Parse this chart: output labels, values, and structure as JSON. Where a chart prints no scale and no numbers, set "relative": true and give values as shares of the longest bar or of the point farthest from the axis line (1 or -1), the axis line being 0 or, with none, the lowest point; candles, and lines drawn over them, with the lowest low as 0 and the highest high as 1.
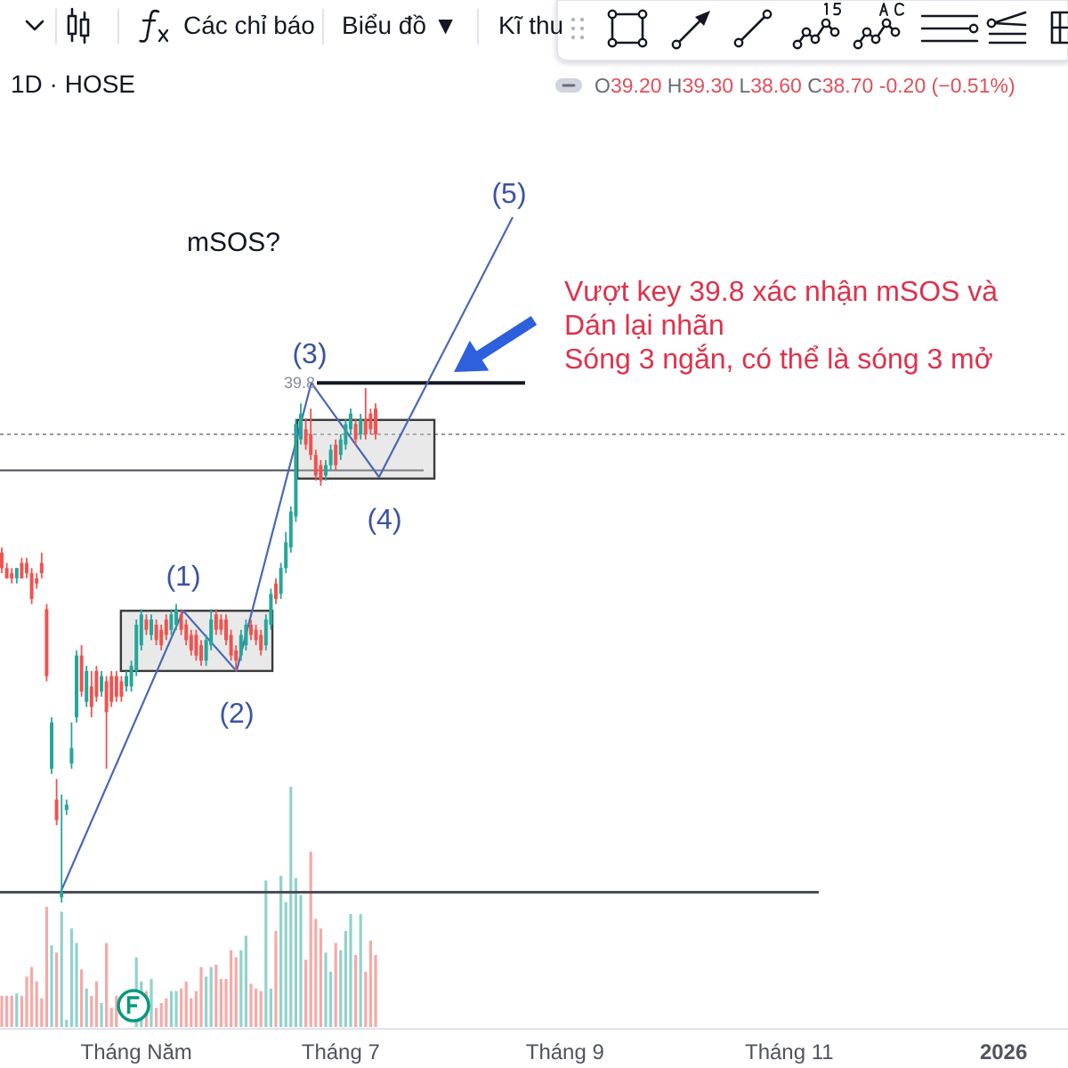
{
  "chart_data": [
    {
      "type": "candlestick",
      "title": "1D · HOSE",
      "relative": true,
      "categories": [
        null,
        null,
        null,
        null,
        null,
        null,
        null,
        null,
        null,
        null,
        null,
        null,
        null,
        null,
        null,
        null,
        null,
        null,
        null,
        null,
        null,
        null,
        null,
        null,
        null,
        null,
        null,
        null,
        null,
        null,
        null,
        null,
        null,
        null,
        null,
        null,
        null,
        null,
        null,
        null,
        null,
        null,
        null,
        null,
        null,
        null,
        null,
        null,
        null,
        null,
        null,
        null,
        null,
        null,
        null,
        null,
        null,
        null,
        null,
        null,
        null,
        null,
        null,
        null,
        null,
        null,
        null,
        null,
        null,
        null,
        null,
        null,
        null,
        null,
        null,
        null,
        null,
        null,
        null,
        null,
        null,
        null,
        null,
        null,
        null,
        null,
        null,
        null,
        null,
        null,
        null,
        null,
        null,
        null,
        null,
        null,
        null,
        null,
        null,
        null,
        null,
        null,
        null,
        null,
        null,
        null,
        null,
        null,
        null,
        null,
        null,
        null,
        null,
        null,
        null,
        null,
        null,
        null,
        null,
        null,
        null,
        null,
        null,
        null,
        null,
        null,
        null,
        null,
        null,
        null,
        null,
        null,
        null,
        null,
        null,
        null,
        null,
        null,
        null,
        null,
        null,
        null,
        null,
        null,
        null,
        null,
        null,
        null,
        null,
        null,
        null,
        null,
        null,
        null,
        null,
        null,
        null,
        null,
        null,
        null,
        null,
        null,
        null,
        null,
        null,
        null,
        null,
        null,
        null,
        null,
        null,
        null,
        null,
        null,
        null,
        null,
        null,
        null,
        null,
        null,
        null,
        null,
        null,
        null,
        null,
        null,
        null,
        null,
        null,
        null,
        null,
        null,
        null,
        null,
        null,
        null,
        null,
        null,
        null,
        null,
        null,
        null,
        null,
        null,
        null,
        null,
        null,
        null,
        null,
        null,
        null,
        null,
        null,
        null,
        null
      ],
      "ohlc": [
        [
          0.68,
          0.69,
          0.64,
          0.65
        ],
        [
          0.65,
          0.66,
          0.63,
          0.63
        ],
        [
          0.64,
          0.65,
          0.62,
          0.63
        ],
        [
          0.63,
          0.65,
          0.62,
          0.65
        ],
        [
          0.66,
          0.67,
          0.63,
          0.63
        ],
        [
          0.66,
          0.67,
          0.63,
          0.64
        ],
        [
          0.64,
          0.65,
          0.58,
          0.59
        ],
        [
          0.63,
          0.64,
          0.61,
          0.62
        ],
        [
          0.66,
          0.68,
          0.63,
          0.64
        ],
        [
          0.57,
          0.58,
          0.43,
          0.44
        ],
        [
          0.26,
          0.36,
          0.25,
          0.35
        ],
        [
          0.2,
          0.24,
          0.15,
          0.16
        ],
        [
          0.01,
          0.21,
          0,
          0.02
        ],
        [
          0.18,
          0.2,
          0.17,
          0.19
        ],
        [
          0.27,
          0.35,
          0.26,
          0.3
        ],
        [
          0.36,
          0.49,
          0.35,
          0.48
        ],
        [
          0.48,
          0.5,
          0.4,
          0.41
        ],
        [
          0.39,
          0.46,
          0.38,
          0.45
        ],
        [
          0.42,
          0.45,
          0.36,
          0.38
        ],
        [
          0.45,
          0.46,
          0.39,
          0.4
        ],
        [
          0.41,
          0.45,
          0.4,
          0.44
        ],
        [
          0.43,
          0.44,
          0.26,
          0.37
        ],
        [
          0.44,
          0.45,
          0.38,
          0.39
        ],
        [
          0.44,
          0.45,
          0.39,
          0.4
        ],
        [
          0.43,
          0.44,
          0.39,
          0.4
        ],
        [
          0.42,
          0.45,
          0.41,
          0.44
        ],
        [
          0.42,
          0.47,
          0.41,
          0.46
        ],
        [
          0.45,
          0.55,
          0.44,
          0.54
        ],
        [
          0.5,
          0.57,
          0.49,
          0.56
        ],
        [
          0.55,
          0.56,
          0.52,
          0.53
        ],
        [
          0.52,
          0.56,
          0.51,
          0.55
        ],
        [
          0.54,
          0.55,
          0.5,
          0.51
        ],
        [
          0.53,
          0.54,
          0.49,
          0.5
        ],
        [
          0.55,
          0.56,
          0.51,
          0.52
        ],
        [
          0.53,
          0.57,
          0.52,
          0.56
        ],
        [
          0.54,
          0.58,
          0.53,
          0.57
        ],
        [
          0.56,
          0.57,
          0.52,
          0.53
        ],
        [
          0.54,
          0.55,
          0.5,
          0.51
        ],
        [
          0.52,
          0.53,
          0.48,
          0.49
        ],
        [
          0.52,
          0.53,
          0.47,
          0.48
        ],
        [
          0.5,
          0.51,
          0.46,
          0.47
        ],
        [
          0.47,
          0.52,
          0.46,
          0.51
        ],
        [
          0.5,
          0.57,
          0.49,
          0.55
        ],
        [
          0.56,
          0.57,
          0.52,
          0.53
        ],
        [
          0.55,
          0.56,
          0.52,
          0.53
        ],
        [
          0.55,
          0.56,
          0.5,
          0.51
        ],
        [
          0.52,
          0.53,
          0.47,
          0.48
        ],
        [
          0.49,
          0.5,
          0.45,
          0.47
        ],
        [
          0.48,
          0.53,
          0.47,
          0.52
        ],
        [
          0.5,
          0.55,
          0.49,
          0.54
        ],
        [
          0.54,
          0.55,
          0.51,
          0.52
        ],
        [
          0.53,
          0.54,
          0.5,
          0.51
        ],
        [
          0.52,
          0.53,
          0.48,
          0.49
        ],
        [
          0.5,
          0.56,
          0.49,
          0.55
        ],
        [
          0.54,
          0.61,
          0.53,
          0.6
        ],
        [
          0.62,
          0.63,
          0.58,
          0.59
        ],
        [
          0.6,
          0.66,
          0.59,
          0.65
        ],
        [
          0.65,
          0.72,
          0.64,
          0.7
        ],
        [
          0.69,
          0.77,
          0.68,
          0.76
        ],
        [
          0.75,
          0.94,
          0.74,
          0.93
        ],
        [
          0.9,
          0.97,
          0.89,
          0.95
        ],
        [
          0.92,
          0.94,
          0.88,
          0.89
        ],
        [
          0.91,
          0.96,
          0.86,
          0.87
        ],
        [
          0.87,
          0.88,
          0.82,
          0.83
        ],
        [
          0.85,
          0.86,
          0.81,
          0.82
        ],
        [
          0.83,
          0.86,
          0.82,
          0.85
        ],
        [
          0.85,
          0.89,
          0.84,
          0.88
        ],
        [
          0.89,
          0.9,
          0.84,
          0.85
        ],
        [
          0.87,
          0.91,
          0.86,
          0.9
        ],
        [
          0.89,
          0.94,
          0.88,
          0.93
        ],
        [
          0.92,
          0.96,
          0.91,
          0.95
        ],
        [
          0.93,
          0.94,
          0.89,
          0.9
        ],
        [
          0.91,
          0.95,
          0.9,
          0.94
        ],
        [
          0.94,
          1,
          0.9,
          0.91
        ],
        [
          0.95,
          0.96,
          0.91,
          0.92
        ],
        [
          0.96,
          0.97,
          0.9,
          0.91
        ],
        null,
        null,
        null,
        null,
        null,
        null,
        null,
        null,
        null,
        null,
        null,
        null,
        null,
        null,
        null,
        null,
        null,
        null,
        null,
        null,
        null,
        null,
        null,
        null,
        null,
        null,
        null,
        null,
        null,
        null,
        null,
        null,
        null,
        null,
        null,
        null,
        null,
        null,
        null,
        null,
        null,
        null,
        null,
        null,
        null,
        null,
        null,
        null,
        null,
        null,
        null,
        null,
        null,
        null,
        null,
        null,
        null,
        null,
        null,
        null,
        null,
        null,
        null,
        null,
        null,
        null,
        null,
        null,
        null,
        null,
        null,
        null,
        null,
        null,
        null,
        null,
        null,
        null,
        null,
        null,
        null,
        null,
        null,
        null,
        null,
        null,
        null,
        null,
        null,
        null,
        null,
        null,
        null,
        null,
        null,
        null,
        null,
        null,
        null,
        null,
        null,
        null,
        null,
        null,
        null,
        null,
        null,
        null,
        null,
        null,
        null,
        null,
        null,
        null,
        null,
        null,
        null,
        null,
        null,
        null,
        null,
        null,
        null,
        null,
        null,
        null,
        null,
        null,
        null,
        null,
        null,
        null,
        null,
        null,
        null,
        null,
        null,
        null,
        null
      ],
      "colors": [
        "#ef5350",
        "#ef5350",
        "#ef5350",
        "#26a69a",
        "#ef5350",
        "#ef5350",
        "#ef5350",
        "#ef5350",
        "#ef5350",
        "#ef5350",
        "#26a69a",
        "#ef5350",
        "#26a69a",
        "#26a69a",
        "#26a69a",
        "#26a69a",
        "#ef5350",
        "#26a69a",
        "#ef5350",
        "#ef5350",
        "#26a69a",
        "#ef5350",
        "#ef5350",
        "#ef5350",
        "#ef5350",
        "#26a69a",
        "#26a69a",
        "#26a69a",
        "#26a69a",
        "#ef5350",
        "#26a69a",
        "#ef5350",
        "#ef5350",
        "#ef5350",
        "#26a69a",
        "#26a69a",
        "#ef5350",
        "#ef5350",
        "#ef5350",
        "#ef5350",
        "#ef5350",
        "#26a69a",
        "#26a69a",
        "#ef5350",
        "#ef5350",
        "#ef5350",
        "#ef5350",
        "#ef5350",
        "#26a69a",
        "#26a69a",
        "#ef5350",
        "#ef5350",
        "#ef5350",
        "#26a69a",
        "#26a69a",
        "#ef5350",
        "#26a69a",
        "#26a69a",
        "#26a69a",
        "#26a69a",
        "#26a69a",
        "#ef5350",
        "#ef5350",
        "#ef5350",
        "#ef5350",
        "#26a69a",
        "#26a69a",
        "#ef5350",
        "#26a69a",
        "#26a69a",
        "#26a69a",
        "#ef5350",
        "#26a69a",
        "#ef5350",
        "#ef5350",
        "#ef5350",
        null,
        null,
        null,
        null,
        null,
        null,
        null,
        null,
        null,
        null,
        null,
        null,
        null,
        null,
        null,
        null,
        null,
        null,
        null,
        null,
        null,
        null,
        null,
        null,
        null,
        null,
        null,
        null,
        null,
        null,
        null,
        null,
        null,
        null,
        null,
        null,
        null,
        null,
        null,
        null,
        null,
        null,
        null,
        null,
        null,
        null,
        null,
        null,
        null,
        null,
        null,
        null,
        null,
        null,
        null,
        null,
        null,
        null,
        null,
        null,
        null,
        null,
        null,
        null,
        null,
        null,
        null,
        null,
        null,
        null,
        null,
        null,
        null,
        null,
        null,
        null,
        null,
        null,
        null,
        null,
        null,
        null,
        null,
        null,
        null,
        null,
        null,
        null,
        null,
        null,
        null,
        null,
        null,
        null,
        null,
        null,
        null,
        null,
        null,
        null,
        null,
        null,
        null,
        null,
        null,
        null,
        null,
        null,
        null,
        null,
        null,
        null,
        null,
        null,
        null,
        null,
        null,
        null,
        null,
        null,
        null,
        null,
        null,
        null,
        null,
        null,
        null,
        null,
        null,
        null,
        null,
        null,
        null,
        null,
        null,
        null,
        null,
        null,
        null
      ],
      "ref_lines": [
        {
          "axis": "y",
          "value": 0.02,
          "color": "#4a4e59"
        },
        {
          "axis": "y",
          "value": 0.84,
          "color": "#4a4e59"
        },
        {
          "axis": "y",
          "value": 1.01,
          "color": "#131722"
        },
        {
          "axis": "y",
          "value": 0.91,
          "color": "#9598a1",
          "line_style": "dotted"
        }
      ],
      "annotations": [
        "(1)",
        "(2)",
        "(3)",
        "(4)",
        "(5)",
        "mSOS?",
        "39.8",
        "Vượt key 39.8 xác nhận mSOS và",
        "Dán lại nhãn",
        "Sóng 3 ngắn, có thể là sóng 3 mở",
        "O39.20 H39.30 L38.60 C38.70 -0.20 (−0.51%)",
        "Các chỉ báo",
        "Biểu đồ ▼",
        "Kĩ thu"
      ]
    },
    {
      "type": "bar",
      "relative": true,
      "categories": [
        null,
        null,
        null,
        null,
        null,
        null,
        null,
        null,
        null,
        null,
        null,
        null,
        null,
        null,
        null,
        null,
        null,
        null,
        null,
        null,
        null,
        null,
        null,
        null,
        null,
        null,
        null,
        "Tháng Năm",
        null,
        null,
        null,
        null,
        null,
        null,
        null,
        null,
        null,
        null,
        null,
        null,
        null,
        null,
        null,
        null,
        null,
        null,
        null,
        null,
        null,
        null,
        null,
        null,
        null,
        null,
        null,
        null,
        null,
        null,
        null,
        null,
        null,
        null,
        null,
        null,
        null,
        null,
        null,
        null,
        "Tháng 7",
        null,
        null,
        null,
        null,
        null,
        null,
        null,
        null,
        null,
        null,
        null,
        null,
        null,
        null,
        null,
        null,
        null,
        null,
        null,
        null,
        null,
        null,
        null,
        null,
        null,
        null,
        null,
        null,
        null,
        null,
        null,
        null,
        null,
        null,
        null,
        null,
        null,
        null,
        null,
        null,
        null,
        null,
        null,
        null,
        "Tháng 9",
        null,
        null,
        null,
        null,
        null,
        null,
        null,
        null,
        null,
        null,
        null,
        null,
        null,
        null,
        null,
        null,
        null,
        null,
        null,
        null,
        null,
        null,
        null,
        null,
        null,
        null,
        null,
        null,
        null,
        null,
        null,
        null,
        null,
        null,
        null,
        null,
        null,
        null,
        null,
        null,
        null,
        null,
        null,
        null,
        "Tháng 11",
        null,
        null,
        null,
        null,
        null,
        null,
        null,
        null,
        null,
        null,
        null,
        null,
        null,
        null,
        null,
        null,
        null,
        null,
        null,
        null,
        null,
        null,
        null,
        null,
        null,
        null,
        null,
        null,
        null,
        null,
        null,
        null,
        null,
        null,
        null,
        null,
        null,
        null,
        null,
        null,
        null,
        null,
        "2026",
        null,
        null,
        null,
        null,
        null,
        null,
        null,
        null,
        null,
        null,
        null,
        null,
        null
      ],
      "values": [
        0.13,
        0.13,
        0.13,
        0.14,
        0.13,
        0.21,
        0.25,
        0.19,
        0.12,
        0.5,
        0.34,
        0.31,
        0.48,
        0.03,
        0.41,
        0.35,
        0.24,
        0.16,
        0.13,
        0.19,
        0.1,
        0.35,
        0.08,
        0.13,
        null,
        null,
        null,
        0.29,
        0.19,
        0.15,
        0.2,
        0.08,
        0.1,
        0.12,
        0.15,
        0.15,
        0.16,
        0.19,
        0.12,
        0.15,
        0.25,
        0.21,
        0.25,
        0.26,
        0.2,
        0.2,
        0.32,
        0.29,
        0.32,
        0.38,
        0.18,
        0.16,
        0.15,
        0.61,
        0.16,
        0.4,
        0.63,
        0.52,
        1,
        0.62,
        0.55,
        0.28,
        0.73,
        0.45,
        0.41,
        0.31,
        0.23,
        0.35,
        0.32,
        0.4,
        0.47,
        0.3,
        0.47,
        0.23,
        0.36,
        0.3,
        null,
        null,
        null,
        null,
        null,
        null,
        null,
        null,
        null,
        null,
        null,
        null,
        null,
        null,
        null,
        null,
        null,
        null,
        null,
        null,
        null,
        null,
        null,
        null,
        null,
        null,
        null,
        null,
        null,
        null,
        null,
        null,
        null,
        null,
        null,
        null,
        null,
        null,
        null,
        null,
        null,
        null,
        null,
        null,
        null,
        null,
        null,
        null,
        null,
        null,
        null,
        null,
        null,
        null,
        null,
        null,
        null,
        null,
        null,
        null,
        null,
        null,
        null,
        null,
        null,
        null,
        null,
        null,
        null,
        null,
        null,
        null,
        null,
        null,
        null,
        null,
        null,
        null,
        null,
        null,
        null,
        null,
        null,
        null,
        null,
        null,
        null,
        null,
        null,
        null,
        null,
        null,
        null,
        null,
        null,
        null,
        null,
        null,
        null,
        null,
        null,
        null,
        null,
        null,
        null,
        null,
        null,
        null,
        null,
        null,
        null,
        null,
        null,
        null,
        null,
        null,
        null,
        null,
        null,
        null,
        null,
        null,
        null,
        null,
        null,
        null,
        null,
        null,
        null,
        null,
        null,
        null,
        null,
        null,
        null,
        null,
        null,
        null,
        null
      ],
      "colors": [
        "#f7a9a7",
        "#f7a9a7",
        "#f7a9a7",
        "#92d2cc",
        "#f7a9a7",
        "#f7a9a7",
        "#f7a9a7",
        "#f7a9a7",
        "#f7a9a7",
        "#f7a9a7",
        "#92d2cc",
        "#f7a9a7",
        "#92d2cc",
        "#92d2cc",
        "#92d2cc",
        "#92d2cc",
        "#f7a9a7",
        "#92d2cc",
        "#f7a9a7",
        "#f7a9a7",
        "#92d2cc",
        "#f7a9a7",
        "#f7a9a7",
        "#f7a9a7",
        null,
        null,
        null,
        "#92d2cc",
        "#92d2cc",
        "#f7a9a7",
        "#92d2cc",
        "#f7a9a7",
        "#f7a9a7",
        "#f7a9a7",
        "#92d2cc",
        "#92d2cc",
        "#f7a9a7",
        "#f7a9a7",
        "#f7a9a7",
        "#f7a9a7",
        "#f7a9a7",
        "#92d2cc",
        "#92d2cc",
        "#f7a9a7",
        "#f7a9a7",
        "#f7a9a7",
        "#f7a9a7",
        "#f7a9a7",
        "#92d2cc",
        "#92d2cc",
        "#f7a9a7",
        "#f7a9a7",
        "#f7a9a7",
        "#92d2cc",
        "#92d2cc",
        "#f7a9a7",
        "#92d2cc",
        "#92d2cc",
        "#92d2cc",
        "#92d2cc",
        "#92d2cc",
        "#f7a9a7",
        "#f7a9a7",
        "#f7a9a7",
        "#f7a9a7",
        "#92d2cc",
        "#92d2cc",
        "#f7a9a7",
        "#92d2cc",
        "#92d2cc",
        "#92d2cc",
        "#f7a9a7",
        "#92d2cc",
        "#f7a9a7",
        "#f7a9a7",
        "#f7a9a7",
        null,
        null,
        null,
        null,
        null,
        null,
        null,
        null,
        null,
        null,
        null,
        null,
        null,
        null,
        null,
        null,
        null,
        null,
        null,
        null,
        null,
        null,
        null,
        null,
        null,
        null,
        null,
        null,
        null,
        null,
        null,
        null,
        null,
        null,
        null,
        null,
        null,
        null,
        null,
        null,
        null,
        null,
        null,
        null,
        null,
        null,
        null,
        null,
        null,
        null,
        null,
        null,
        null,
        null,
        null,
        null,
        null,
        null,
        null,
        null,
        null,
        null,
        null,
        null,
        null,
        null,
        null,
        null,
        null,
        null,
        null,
        null,
        null,
        null,
        null,
        null,
        null,
        null,
        null,
        null,
        null,
        null,
        null,
        null,
        null,
        null,
        null,
        null,
        null,
        null,
        null,
        null,
        null,
        null,
        null,
        null,
        null,
        null,
        null,
        null,
        null,
        null,
        null,
        null,
        null,
        null,
        null,
        null,
        null,
        null,
        null,
        null,
        null,
        null,
        null,
        null,
        null,
        null,
        null,
        null,
        null,
        null,
        null,
        null,
        null,
        null,
        null,
        null,
        null,
        null,
        null,
        null,
        null,
        null,
        null,
        null,
        null,
        null,
        null
      ]
    }
  ]
}
